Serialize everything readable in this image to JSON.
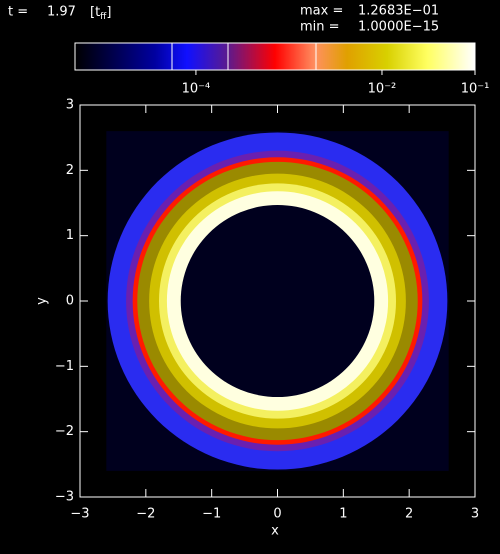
{
  "chart_data": {
    "type": "ring",
    "time_label": "t =",
    "time_value": "1.97",
    "time_unit": "[t",
    "time_unit_sub": "ff",
    "time_unit_close": "]",
    "max_label": "max =",
    "max_value": "1.2683E−01",
    "min_label": "min =",
    "min_value": "1.0000E−15",
    "colorbar": {
      "lim": [
        -5.3,
        -1
      ],
      "ticks": [
        {
          "value": -4,
          "label": "10⁻⁴"
        },
        {
          "value": -2,
          "label": "10⁻²"
        },
        {
          "value": -1,
          "label": "10⁻¹"
        }
      ]
    },
    "x_label": "x",
    "y_label": "y",
    "xlim": [
      -3,
      3
    ],
    "ylim": [
      -3,
      3
    ],
    "xticks": [
      {
        "value": -3,
        "label": "−3"
      },
      {
        "value": -2,
        "label": "−2"
      },
      {
        "value": -1,
        "label": "−1"
      },
      0,
      1,
      2,
      3
    ],
    "yticks": [
      {
        "value": -3,
        "label": "−3"
      },
      {
        "value": -2,
        "label": "−2"
      },
      {
        "value": -1,
        "label": "−1"
      },
      0,
      1,
      2,
      3
    ],
    "extent": 2.6,
    "background": "#00001e",
    "rings": [
      {
        "radius": 2.58,
        "color": "#2a2cf0"
      },
      {
        "radius": 2.3,
        "color": "#6a20b0"
      },
      {
        "radius": 2.2,
        "color": "#ff1a00"
      },
      {
        "radius": 2.13,
        "color": "#9a8a00"
      },
      {
        "radius": 1.95,
        "color": "#d0c000"
      },
      {
        "radius": 1.8,
        "color": "#f4f060"
      },
      {
        "radius": 1.68,
        "color": "#ffffe0"
      },
      {
        "radius": 1.47,
        "color": "#00001e"
      }
    ]
  }
}
